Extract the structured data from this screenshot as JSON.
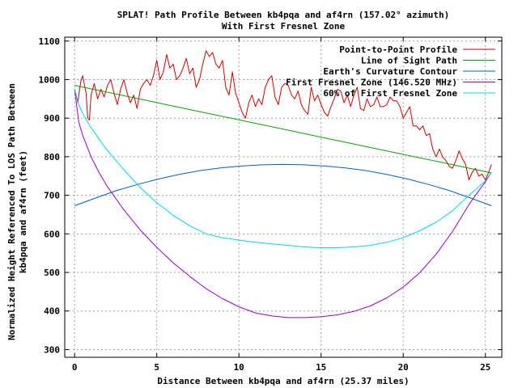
{
  "chart_data": {
    "type": "line",
    "title": "SPLAT! Path Profile Between kb4pqa and af4rn (157.02° azimuth)",
    "subtitle": "With First Fresnel Zone",
    "xlabel": "Distance Between kb4pqa and af4rn (25.37 miles)",
    "ylabel_line1": "Normalized Height Referenced To LOS Path Between",
    "ylabel_line2": "kb4pqa and af4rn (feet)",
    "xlim": [
      -0.6,
      26.0
    ],
    "ylim": [
      280,
      1110
    ],
    "xticks": [
      0,
      5,
      10,
      15,
      20,
      25
    ],
    "yticks": [
      300,
      400,
      500,
      600,
      700,
      800,
      900,
      1000,
      1100
    ],
    "grid": true,
    "legend_position": "top-right",
    "series": [
      {
        "name": "Point-to-Point Profile",
        "color": "#cc0000",
        "x": [
          0,
          0.1,
          0.2,
          0.3,
          0.4,
          0.5,
          0.6,
          0.7,
          0.8,
          0.9,
          1.0,
          1.2,
          1.4,
          1.6,
          1.8,
          2.0,
          2.2,
          2.4,
          2.6,
          2.8,
          3.0,
          3.2,
          3.4,
          3.6,
          3.8,
          4.0,
          4.2,
          4.4,
          4.6,
          4.8,
          5.0,
          5.2,
          5.4,
          5.6,
          5.8,
          6.0,
          6.2,
          6.4,
          6.6,
          6.8,
          7.0,
          7.2,
          7.4,
          7.6,
          7.8,
          8.0,
          8.2,
          8.4,
          8.6,
          8.8,
          9.0,
          9.2,
          9.4,
          9.6,
          9.8,
          10.0,
          10.2,
          10.4,
          10.6,
          10.8,
          11.0,
          11.2,
          11.4,
          11.6,
          11.8,
          12.0,
          12.2,
          12.4,
          12.6,
          12.8,
          13.0,
          13.2,
          13.4,
          13.6,
          13.8,
          14.0,
          14.2,
          14.4,
          14.6,
          14.8,
          15.0,
          15.2,
          15.4,
          15.6,
          15.8,
          16.0,
          16.2,
          16.4,
          16.6,
          16.8,
          17.0,
          17.2,
          17.4,
          17.6,
          17.8,
          18.0,
          18.2,
          18.4,
          18.6,
          18.8,
          19.0,
          19.2,
          19.4,
          19.6,
          19.8,
          20.0,
          20.2,
          20.4,
          20.6,
          20.8,
          21.0,
          21.2,
          21.4,
          21.6,
          21.8,
          22.0,
          22.2,
          22.4,
          22.6,
          22.8,
          23.0,
          23.2,
          23.4,
          23.6,
          23.8,
          24.0,
          24.2,
          24.4,
          24.6,
          24.8,
          25.0,
          25.2,
          25.37
        ],
        "y": [
          975,
          960,
          940,
          975,
          1000,
          1010,
          985,
          965,
          900,
          895,
          960,
          990,
          950,
          975,
          955,
          985,
          1000,
          965,
          935,
          975,
          1000,
          965,
          940,
          960,
          925,
          975,
          990,
          1000,
          985,
          1010,
          1050,
          1000,
          1020,
          1065,
          1030,
          1040,
          1000,
          1010,
          1030,
          1055,
          1015,
          1030,
          980,
          1000,
          1040,
          1075,
          1060,
          1070,
          1040,
          1030,
          1050,
          980,
          960,
          1020,
          965,
          940,
          915,
          900,
          940,
          960,
          930,
          950,
          935,
          980,
          1000,
          1010,
          955,
          935,
          980,
          990,
          985,
          960,
          950,
          970,
          935,
          920,
          910,
          980,
          945,
          960,
          935,
          915,
          905,
          930,
          950,
          975,
          970,
          940,
          960,
          930,
          960,
          980,
          925,
          920,
          950,
          930,
          935,
          955,
          930,
          930,
          935,
          955,
          945,
          945,
          930,
          900,
          915,
          930,
          880,
          880,
          870,
          880,
          855,
          860,
          820,
          800,
          820,
          800,
          790,
          775,
          770,
          790,
          815,
          795,
          780,
          740,
          760,
          770,
          750,
          755,
          740,
          760,
          780
        ]
      },
      {
        "name": "Line of Sight Path",
        "color": "#00a000",
        "x": [
          0,
          25.37
        ],
        "y": [
          985,
          758
        ]
      },
      {
        "name": "Earth's Curvature Contour",
        "color": "#0060c0",
        "x": [
          0,
          1.27,
          2.54,
          3.81,
          5.07,
          6.34,
          7.61,
          8.88,
          10.15,
          11.42,
          12.69,
          13.95,
          15.22,
          16.49,
          17.76,
          19.03,
          20.3,
          21.56,
          22.83,
          24.1,
          25.37
        ],
        "y": [
          673,
          693,
          712,
          728,
          742,
          754,
          764,
          771,
          776,
          779,
          780,
          779,
          776,
          771,
          764,
          754,
          742,
          728,
          712,
          693,
          673
        ]
      },
      {
        "name": "First Fresnel Zone (146.520 MHz)",
        "color": "#9a00c8",
        "x": [
          0,
          0.25,
          0.5,
          1.0,
          1.5,
          2.0,
          3.0,
          4.0,
          5.0,
          6.0,
          7.0,
          8.0,
          9.0,
          10.0,
          11.0,
          12.0,
          13.0,
          14.0,
          15.0,
          16.0,
          17.0,
          18.0,
          19.0,
          20.0,
          21.0,
          22.0,
          23.0,
          24.0,
          24.5,
          25.0,
          25.37
        ],
        "y": [
          975,
          890,
          855,
          800,
          758,
          722,
          662,
          610,
          565,
          525,
          490,
          458,
          432,
          411,
          395,
          387,
          383,
          383,
          385,
          390,
          399,
          413,
          434,
          462,
          499,
          547,
          606,
          676,
          706,
          735,
          760
        ]
      },
      {
        "name": "60% of First Fresnel Zone",
        "color": "#00d8e8",
        "x": [
          0,
          0.25,
          0.5,
          1.0,
          1.5,
          2.0,
          3.0,
          4.0,
          5.0,
          6.0,
          7.0,
          8.0,
          9.0,
          10.0,
          11.0,
          12.0,
          13.0,
          14.0,
          15.0,
          16.0,
          17.0,
          18.0,
          19.0,
          20.0,
          21.0,
          22.0,
          23.0,
          24.0,
          24.5,
          25.0,
          25.37
        ],
        "y": [
          975,
          935,
          912,
          875,
          845,
          816,
          766,
          720,
          681,
          648,
          621,
          600,
          590,
          584,
          578,
          574,
          570,
          566,
          564,
          564,
          566,
          570,
          578,
          590,
          608,
          630,
          660,
          700,
          718,
          738,
          760
        ]
      }
    ]
  }
}
